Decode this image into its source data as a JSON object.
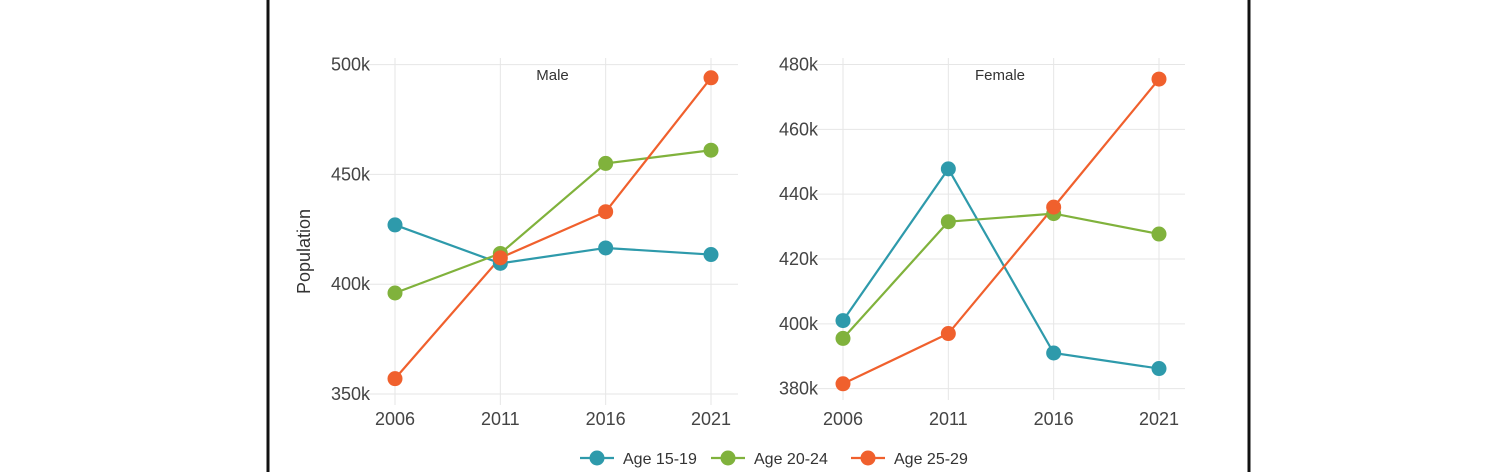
{
  "chart_data": [
    {
      "type": "line",
      "title": "Male",
      "xlabel": "",
      "ylabel": "Population",
      "x": [
        "2006",
        "2011",
        "2016",
        "2021"
      ],
      "ylim": [
        345000,
        503000
      ],
      "yticks": [
        350000,
        400000,
        450000,
        500000
      ],
      "ytick_labels": [
        "350k",
        "400k",
        "450k",
        "500k"
      ],
      "grid": true,
      "series": [
        {
          "name": "Age 15-19",
          "color": "#2e9aab",
          "values": [
            427000,
            409500,
            416500,
            413500
          ]
        },
        {
          "name": "Age 20-24",
          "color": "#80b23c",
          "values": [
            396000,
            414000,
            455000,
            461000
          ]
        },
        {
          "name": "Age 25-29",
          "color": "#f0602d",
          "values": [
            357000,
            412000,
            433000,
            494000
          ]
        }
      ]
    },
    {
      "type": "line",
      "title": "Female",
      "xlabel": "",
      "ylabel": "",
      "x": [
        "2006",
        "2011",
        "2016",
        "2021"
      ],
      "ylim": [
        376500,
        482000
      ],
      "yticks": [
        380000,
        400000,
        420000,
        440000,
        460000,
        480000
      ],
      "ytick_labels": [
        "380k",
        "400k",
        "420k",
        "440k",
        "460k",
        "480k"
      ],
      "grid": true,
      "series": [
        {
          "name": "Age 15-19",
          "color": "#2e9aab",
          "values": [
            401000,
            447800,
            391000,
            386200
          ]
        },
        {
          "name": "Age 20-24",
          "color": "#80b23c",
          "values": [
            395500,
            431500,
            434000,
            427700
          ]
        },
        {
          "name": "Age 25-29",
          "color": "#f0602d",
          "values": [
            381500,
            397000,
            436000,
            475500
          ]
        }
      ]
    }
  ],
  "legend": {
    "placement": "bottom",
    "items": [
      {
        "label": "Age 15-19",
        "color": "#2e9aab"
      },
      {
        "label": "Age 20-24",
        "color": "#80b23c"
      },
      {
        "label": "Age 25-29",
        "color": "#f0602d"
      }
    ]
  }
}
